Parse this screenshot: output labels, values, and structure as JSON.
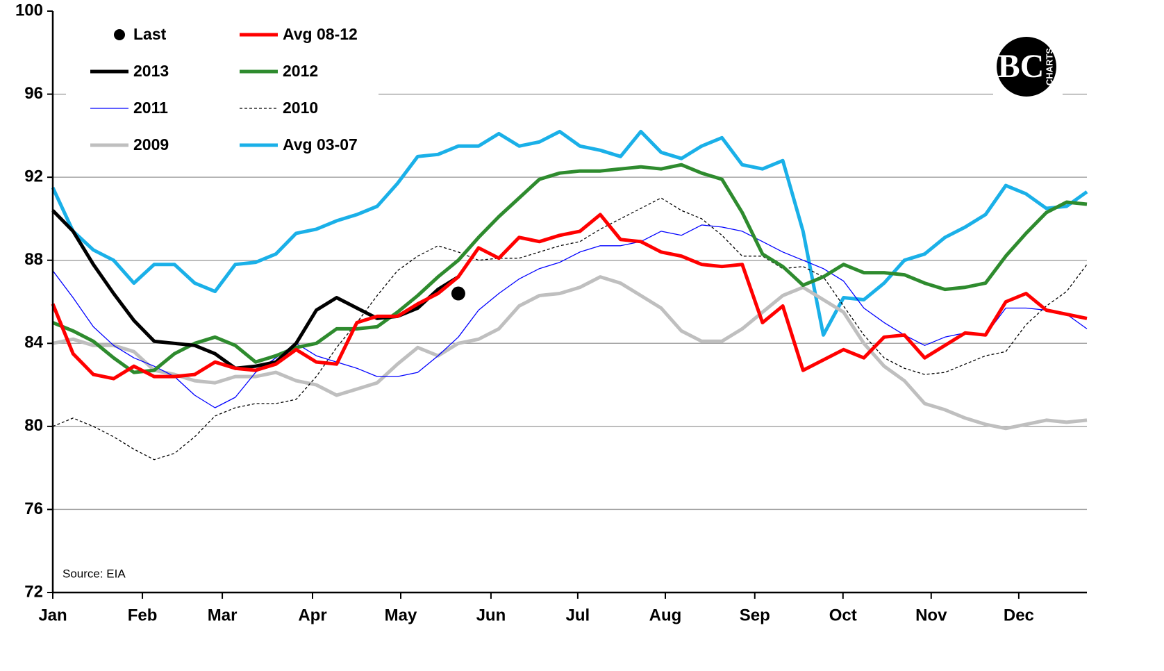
{
  "chart_data": {
    "type": "line",
    "annotation": "Source: EIA",
    "logo": {
      "letters": "BC",
      "word": "CHARTS"
    },
    "x": [
      0,
      1,
      2,
      3,
      4,
      5,
      6,
      7,
      8,
      9,
      10,
      11,
      12,
      13,
      14,
      15,
      16,
      17,
      18,
      19,
      20,
      21,
      22,
      23,
      24,
      25,
      26,
      27,
      28,
      29,
      30,
      31,
      32,
      33,
      34,
      35,
      36,
      37,
      38,
      39,
      40,
      41,
      42,
      43,
      44,
      45,
      46,
      47,
      48,
      49,
      50,
      51
    ],
    "xlim": [
      0,
      51
    ],
    "xticks": [
      {
        "value": 0,
        "label": "Jan"
      },
      {
        "value": 4.42,
        "label": "Feb"
      },
      {
        "value": 8.36,
        "label": "Mar"
      },
      {
        "value": 12.81,
        "label": "Apr"
      },
      {
        "value": 17.16,
        "label": "May"
      },
      {
        "value": 21.61,
        "label": "Jun"
      },
      {
        "value": 25.89,
        "label": "Jul"
      },
      {
        "value": 30.21,
        "label": "Aug"
      },
      {
        "value": 34.62,
        "label": "Sep"
      },
      {
        "value": 38.97,
        "label": "Oct"
      },
      {
        "value": 43.32,
        "label": "Nov"
      },
      {
        "value": 47.64,
        "label": "Dec"
      }
    ],
    "ylim": [
      72,
      100
    ],
    "yticks": [
      72,
      76,
      80,
      84,
      88,
      92,
      96,
      100
    ],
    "grid": true,
    "series": [
      {
        "name": "Last",
        "color": "#000000",
        "style": "marker",
        "values": [
          null,
          null,
          null,
          null,
          null,
          null,
          null,
          null,
          null,
          null,
          null,
          null,
          null,
          null,
          null,
          null,
          null,
          null,
          null,
          null,
          86.4,
          null,
          null,
          null,
          null,
          null,
          null,
          null,
          null,
          null,
          null,
          null,
          null,
          null,
          null,
          null,
          null,
          null,
          null,
          null,
          null,
          null,
          null,
          null,
          null,
          null,
          null,
          null,
          null,
          null,
          null,
          null
        ]
      },
      {
        "name": "Avg 08-12",
        "color": "#ff0000",
        "width": 5,
        "values": [
          85.9,
          83.5,
          82.5,
          82.3,
          82.9,
          82.4,
          82.4,
          82.5,
          83.1,
          82.8,
          82.7,
          83.0,
          83.7,
          83.1,
          83.0,
          85.0,
          85.3,
          85.3,
          85.9,
          86.4,
          87.2,
          88.6,
          88.1,
          89.1,
          88.9,
          89.2,
          89.4,
          90.2,
          89.0,
          88.9,
          88.4,
          88.2,
          87.8,
          87.7,
          87.8,
          85.0,
          85.8,
          82.7,
          83.2,
          83.7,
          83.3,
          84.3,
          84.4,
          83.3,
          83.9,
          84.5,
          84.4,
          86.0,
          86.4,
          85.6,
          85.4,
          85.2
        ]
      },
      {
        "name": "2013",
        "color": "#000000",
        "width": 5,
        "values": [
          90.4,
          89.4,
          87.8,
          86.4,
          85.1,
          84.1,
          84.0,
          83.9,
          83.5,
          82.8,
          82.9,
          83.1,
          84.0,
          85.6,
          86.2,
          85.7,
          85.2,
          85.3,
          85.7,
          86.6,
          87.2,
          null,
          null,
          null,
          null,
          null,
          null,
          null,
          null,
          null,
          null,
          null,
          null,
          null,
          null,
          null,
          null,
          null,
          null,
          null,
          null,
          null,
          null,
          null,
          null,
          null,
          null,
          null,
          null,
          null,
          null,
          null
        ]
      },
      {
        "name": "2012",
        "color": "#2e8b2e",
        "width": 5,
        "values": [
          85.0,
          84.6,
          84.1,
          83.3,
          82.6,
          82.7,
          83.5,
          84.0,
          84.3,
          83.9,
          83.1,
          83.4,
          83.8,
          84.0,
          84.7,
          84.7,
          84.8,
          85.5,
          86.3,
          87.2,
          88.0,
          89.1,
          90.1,
          91.0,
          91.9,
          92.2,
          92.3,
          92.3,
          92.4,
          92.5,
          92.4,
          92.6,
          92.2,
          91.9,
          90.3,
          88.3,
          87.7,
          86.8,
          87.2,
          87.8,
          87.4,
          87.4,
          87.3,
          86.9,
          86.6,
          86.7,
          86.9,
          88.2,
          89.3,
          90.3,
          90.8,
          90.7
        ]
      },
      {
        "name": "2011",
        "color": "#0000ff",
        "width": 1.3,
        "values": [
          87.5,
          86.2,
          84.8,
          83.9,
          83.3,
          82.9,
          82.4,
          81.5,
          80.9,
          81.4,
          82.6,
          83.3,
          84.0,
          83.4,
          83.1,
          82.8,
          82.4,
          82.4,
          82.6,
          83.4,
          84.3,
          85.6,
          86.4,
          87.1,
          87.6,
          87.9,
          88.4,
          88.7,
          88.7,
          88.9,
          89.4,
          89.2,
          89.7,
          89.6,
          89.4,
          88.9,
          88.4,
          88.0,
          87.6,
          87.0,
          85.7,
          85.0,
          84.4,
          83.9,
          84.3,
          84.5,
          84.4,
          85.7,
          85.7,
          85.6,
          85.4,
          84.7
        ]
      },
      {
        "name": "2010",
        "color": "#000000",
        "width": 1.3,
        "dashed": true,
        "values": [
          80.0,
          80.4,
          80.0,
          79.5,
          78.9,
          78.4,
          78.7,
          79.5,
          80.5,
          80.9,
          81.1,
          81.1,
          81.3,
          82.4,
          83.8,
          85.0,
          86.3,
          87.5,
          88.2,
          88.7,
          88.4,
          88.0,
          88.1,
          88.1,
          88.4,
          88.7,
          88.9,
          89.5,
          90.0,
          90.5,
          91.0,
          90.4,
          90.0,
          89.2,
          88.2,
          88.2,
          87.6,
          87.7,
          87.2,
          85.8,
          84.4,
          83.3,
          82.8,
          82.5,
          82.6,
          83.0,
          83.4,
          83.6,
          84.9,
          85.8,
          86.5,
          87.8
        ]
      },
      {
        "name": "2009",
        "color": "#bfbfbf",
        "width": 5,
        "values": [
          84.0,
          84.2,
          83.9,
          83.9,
          83.6,
          82.7,
          82.5,
          82.2,
          82.1,
          82.4,
          82.4,
          82.6,
          82.2,
          82.0,
          81.5,
          81.8,
          82.1,
          83.0,
          83.8,
          83.4,
          84.0,
          84.2,
          84.7,
          85.8,
          86.3,
          86.4,
          86.7,
          87.2,
          86.9,
          86.3,
          85.7,
          84.6,
          84.1,
          84.1,
          84.7,
          85.5,
          86.3,
          86.7,
          86.1,
          85.5,
          84.0,
          82.9,
          82.2,
          81.1,
          80.8,
          80.4,
          80.1,
          79.9,
          80.1,
          80.3,
          80.2,
          80.3
        ]
      },
      {
        "name": "Avg 03-07",
        "color": "#1ab0e8",
        "width": 5,
        "values": [
          91.5,
          89.4,
          88.5,
          88.0,
          86.9,
          87.8,
          87.8,
          86.9,
          86.5,
          87.8,
          87.9,
          88.3,
          89.3,
          89.5,
          89.9,
          90.2,
          90.6,
          91.7,
          93.0,
          93.1,
          93.5,
          93.5,
          94.1,
          93.5,
          93.7,
          94.2,
          93.5,
          93.3,
          93.0,
          94.2,
          93.2,
          92.9,
          93.5,
          93.9,
          92.6,
          92.4,
          92.8,
          89.4,
          84.4,
          86.2,
          86.1,
          86.9,
          88.0,
          88.3,
          89.1,
          89.6,
          90.2,
          91.6,
          91.2,
          90.5,
          90.6,
          91.3
        ]
      }
    ]
  }
}
